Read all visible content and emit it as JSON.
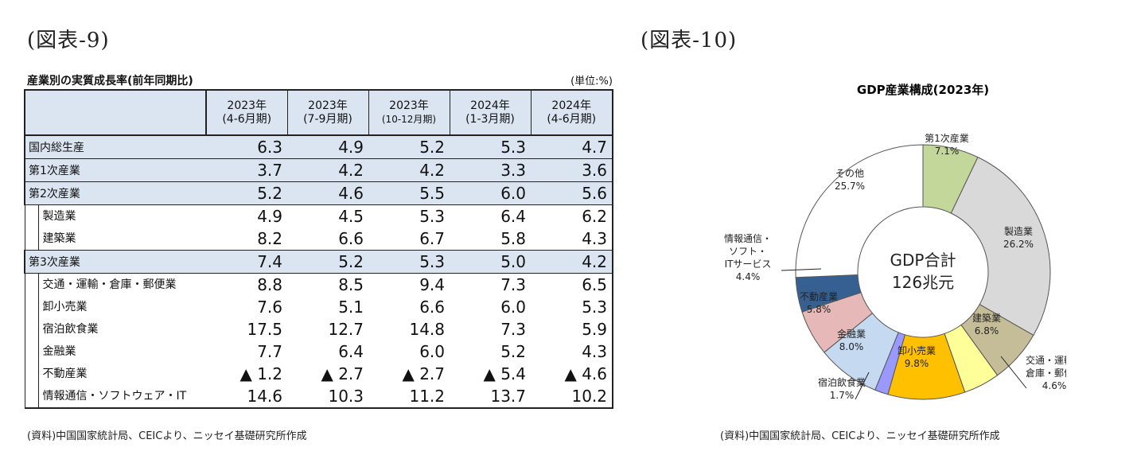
{
  "fig9_title": "(図表-9)",
  "fig10_title": "(図表-10)",
  "table": {
    "caption": "産業別の実質成長率(前年同期比)",
    "unit": "(単位:%)",
    "columns": [
      {
        "year": "2023年",
        "period": "(4-6月期)"
      },
      {
        "year": "2023年",
        "period": "(7-9月期)"
      },
      {
        "year": "2023年",
        "period": "(10-12月期)"
      },
      {
        "year": "2024年",
        "period": "(1-3月期)"
      },
      {
        "year": "2024年",
        "period": "(4-6月期)"
      }
    ],
    "rows": [
      {
        "label": "国内総生産",
        "level": "major",
        "values": [
          "6.3",
          "4.9",
          "5.2",
          "5.3",
          "4.7"
        ]
      },
      {
        "label": "第1次産業",
        "level": "major",
        "values": [
          "3.7",
          "4.2",
          "4.2",
          "3.3",
          "3.6"
        ]
      },
      {
        "label": "第2次産業",
        "level": "major",
        "values": [
          "5.2",
          "4.6",
          "5.5",
          "6.0",
          "5.6"
        ]
      },
      {
        "label": "製造業",
        "level": "minor",
        "values": [
          "4.9",
          "4.5",
          "5.3",
          "6.4",
          "6.2"
        ]
      },
      {
        "label": "建築業",
        "level": "minor",
        "values": [
          "8.2",
          "6.6",
          "6.7",
          "5.8",
          "4.3"
        ]
      },
      {
        "label": "第3次産業",
        "level": "major",
        "values": [
          "7.4",
          "5.2",
          "5.3",
          "5.0",
          "4.2"
        ]
      },
      {
        "label": "交通・運輸・倉庫・郵便業",
        "level": "minor",
        "values": [
          "8.8",
          "8.5",
          "9.4",
          "7.3",
          "6.5"
        ]
      },
      {
        "label": "卸小売業",
        "level": "minor",
        "values": [
          "7.6",
          "5.1",
          "6.6",
          "6.0",
          "5.3"
        ]
      },
      {
        "label": "宿泊飲食業",
        "level": "minor",
        "values": [
          "17.5",
          "12.7",
          "14.8",
          "7.3",
          "5.9"
        ]
      },
      {
        "label": "金融業",
        "level": "minor",
        "values": [
          "7.7",
          "6.4",
          "6.0",
          "5.2",
          "4.3"
        ]
      },
      {
        "label": "不動産業",
        "level": "minor",
        "values": [
          "▲ 1.2",
          "▲ 2.7",
          "▲ 2.7",
          "▲ 5.4",
          "▲ 4.6"
        ]
      },
      {
        "label": "情報通信・ソフトウェア・IT",
        "level": "minor",
        "values": [
          "14.6",
          "10.3",
          "11.2",
          "13.7",
          "10.2"
        ]
      }
    ]
  },
  "chart_data": [
    {
      "type": "table",
      "title": "産業別の実質成長率(前年同期比)",
      "unit": "(単位:%)",
      "columns": [
        "2023年(4-6月期)",
        "2023年(7-9月期)",
        "2023年(10-12月期)",
        "2024年(1-3月期)",
        "2024年(4-6月期)"
      ],
      "rows": [
        {
          "name": "国内総生産",
          "values": [
            6.3,
            4.9,
            5.2,
            5.3,
            4.7
          ]
        },
        {
          "name": "第1次産業",
          "values": [
            3.7,
            4.2,
            4.2,
            3.3,
            3.6
          ]
        },
        {
          "name": "第2次産業",
          "values": [
            5.2,
            4.6,
            5.5,
            6.0,
            5.6
          ]
        },
        {
          "name": "製造業",
          "values": [
            4.9,
            4.5,
            5.3,
            6.4,
            6.2
          ]
        },
        {
          "name": "建築業",
          "values": [
            8.2,
            6.6,
            6.7,
            5.8,
            4.3
          ]
        },
        {
          "name": "第3次産業",
          "values": [
            7.4,
            5.2,
            5.3,
            5.0,
            4.2
          ]
        },
        {
          "name": "交通・運輸・倉庫・郵便業",
          "values": [
            8.8,
            8.5,
            9.4,
            7.3,
            6.5
          ]
        },
        {
          "name": "卸小売業",
          "values": [
            7.6,
            5.1,
            6.6,
            6.0,
            5.3
          ]
        },
        {
          "name": "宿泊飲食業",
          "values": [
            17.5,
            12.7,
            14.8,
            7.3,
            5.9
          ]
        },
        {
          "name": "金融業",
          "values": [
            7.7,
            6.4,
            6.0,
            5.2,
            4.3
          ]
        },
        {
          "name": "不動産業",
          "values": [
            -1.2,
            -2.7,
            -2.7,
            -5.4,
            -4.6
          ]
        },
        {
          "name": "情報通信・ソフトウェア・IT",
          "values": [
            14.6,
            10.3,
            11.2,
            13.7,
            10.2
          ]
        }
      ]
    },
    {
      "type": "pie",
      "title": "GDP産業構成(2023年)",
      "center_label": [
        "GDP合計",
        "126兆元"
      ],
      "slices": [
        {
          "name": "第1次産業",
          "lines": [
            "第1次産業"
          ],
          "value": 7.1,
          "label": "7.1%",
          "color": "#c4d79b"
        },
        {
          "name": "製造業",
          "lines": [
            "製造業"
          ],
          "value": 26.2,
          "label": "26.2%",
          "color": "#d9d9d9"
        },
        {
          "name": "建築業",
          "lines": [
            "建築業"
          ],
          "value": 6.8,
          "label": "6.8%",
          "color": "#c4bd97"
        },
        {
          "name": "交通・運輸・倉庫・郵便業",
          "lines": [
            "交通・運輸・",
            "倉庫・郵便業"
          ],
          "value": 4.6,
          "label": "4.6%",
          "color": "#ffff99"
        },
        {
          "name": "卸小売業",
          "lines": [
            "卸小売業"
          ],
          "value": 9.8,
          "label": "9.8%",
          "color": "#ffc000"
        },
        {
          "name": "宿泊飲食業",
          "lines": [
            "宿泊飲食業"
          ],
          "value": 1.7,
          "label": "1.7%",
          "color": "#9999ff"
        },
        {
          "name": "金融業",
          "lines": [
            "金融業"
          ],
          "value": 8.0,
          "label": "8.0%",
          "color": "#c5d9f1"
        },
        {
          "name": "不動産業",
          "lines": [
            "不動産業"
          ],
          "value": 5.8,
          "label": "5.8%",
          "color": "#e6b8b7"
        },
        {
          "name": "情報通信・ソフト・ITサービス",
          "lines": [
            "情報通信・",
            "ソフト・",
            "ITサービス"
          ],
          "value": 4.4,
          "label": "4.4%",
          "color": "#366092"
        },
        {
          "name": "その他",
          "lines": [
            "その他"
          ],
          "value": 25.7,
          "label": "25.7%",
          "color": "#ffffff"
        }
      ]
    }
  ],
  "source_left": "(資料)中国国家統計局、CEICより、ニッセイ基礎研究所作成",
  "source_right": "(資料)中国国家統計局、CEICより、ニッセイ基礎研究所作成"
}
